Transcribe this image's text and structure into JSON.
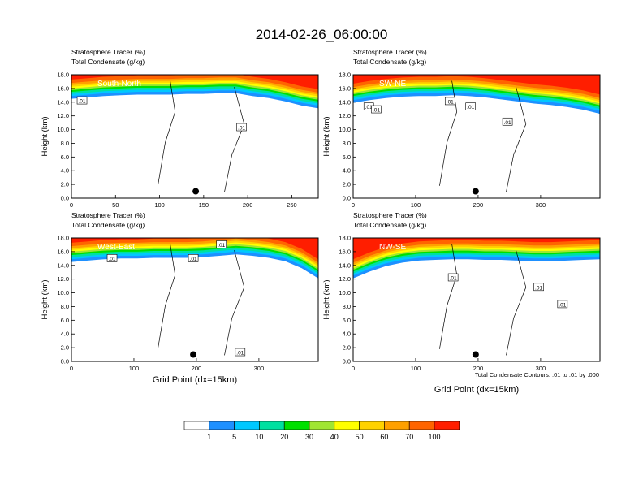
{
  "figure": {
    "title": "2014-02-26_06:00:00",
    "footnote": "Total Condensate Contours: .01 to .01 by .000",
    "xlabel": "Grid Point (dx=15km)"
  },
  "legend": {
    "levels": [
      "1",
      "5",
      "10",
      "20",
      "30",
      "40",
      "50",
      "60",
      "70",
      "100"
    ],
    "colors": [
      "#ffffff",
      "#1e90ff",
      "#00c8ff",
      "#00e0a0",
      "#00e000",
      "#a0e632",
      "#ffff00",
      "#ffd200",
      "#ffa000",
      "#ff6400",
      "#ff1e00"
    ]
  },
  "chart_data": [
    {
      "type": "heatmap",
      "title": "South-North",
      "header_left": "Stratosphere Tracer   (%)",
      "header_left2": "Total Condensate   (g/kg)",
      "ylabel": "Height (km)",
      "xlim": [
        0,
        280
      ],
      "ylim": [
        0,
        18
      ],
      "xticks": [
        0,
        50,
        100,
        150,
        200,
        250
      ],
      "yticks": [
        0.0,
        2.0,
        4.0,
        6.0,
        8.0,
        10.0,
        12.0,
        14.0,
        16.0,
        18.0
      ],
      "marker": {
        "x": 141,
        "y": 1.0
      },
      "tropopause_km": [
        15.4,
        15.6,
        15.8,
        15.9,
        16.0,
        16.0,
        16.0,
        16.1,
        16.1,
        16.2,
        16.2,
        15.8,
        15.5,
        15.0,
        14.4,
        14.0
      ],
      "contour_labels": [
        {
          "x": 12,
          "y": 14.2,
          "text": ".01"
        },
        {
          "x": 193,
          "y": 10.3,
          "text": ".01"
        }
      ]
    },
    {
      "type": "heatmap",
      "title": "SW-NE",
      "header_left": "Stratosphere Tracer   (%)",
      "header_left2": "Total Condensate   (g/kg)",
      "ylabel": "Height (km)",
      "xlim": [
        0,
        395
      ],
      "ylim": [
        0,
        18
      ],
      "xticks": [
        0,
        100,
        200,
        300
      ],
      "yticks": [
        0.0,
        2.0,
        4.0,
        6.0,
        8.0,
        10.0,
        12.0,
        14.0,
        16.0,
        18.0
      ],
      "marker": {
        "x": 196,
        "y": 1.0
      },
      "tropopause_km": [
        14.8,
        15.2,
        15.5,
        15.7,
        15.8,
        15.8,
        15.9,
        15.8,
        15.6,
        15.3,
        15.0,
        14.7,
        14.5,
        14.2,
        13.8,
        13.2
      ],
      "contour_labels": [
        {
          "x": 25,
          "y": 13.3,
          "text": ".01"
        },
        {
          "x": 37,
          "y": 12.9,
          "text": ".01"
        },
        {
          "x": 155,
          "y": 14.1,
          "text": ".01"
        },
        {
          "x": 188,
          "y": 13.3,
          "text": ".01"
        },
        {
          "x": 247,
          "y": 11.1,
          "text": ".01"
        }
      ]
    },
    {
      "type": "heatmap",
      "title": "West-East",
      "header_left": "Stratosphere Tracer   (%)",
      "header_left2": "Total Condensate   (g/kg)",
      "ylabel": "Height (km)",
      "xlim": [
        0,
        395
      ],
      "ylim": [
        0,
        18
      ],
      "xticks": [
        0,
        100,
        200,
        300
      ],
      "yticks": [
        0.0,
        2.0,
        4.0,
        6.0,
        8.0,
        10.0,
        12.0,
        14.0,
        16.0,
        18.0
      ],
      "marker": {
        "x": 195,
        "y": 1.0
      },
      "tropopause_km": [
        15.4,
        15.6,
        15.8,
        15.9,
        15.9,
        16.0,
        16.0,
        16.0,
        16.1,
        16.3,
        16.5,
        16.3,
        16.0,
        15.5,
        14.5,
        13.0
      ],
      "contour_labels": [
        {
          "x": 65,
          "y": 15.0,
          "text": ".01"
        },
        {
          "x": 195,
          "y": 15.0,
          "text": ".01"
        },
        {
          "x": 240,
          "y": 17.0,
          "text": ".01"
        },
        {
          "x": 270,
          "y": 1.3,
          "text": ".01"
        }
      ]
    },
    {
      "type": "heatmap",
      "title": "NW-SE",
      "header_left": "Stratosphere Tracer   (%)",
      "header_left2": "Total Condensate   (g/kg)",
      "ylabel": "Height (km)",
      "xlim": [
        0,
        395
      ],
      "ylim": [
        0,
        18
      ],
      "xticks": [
        0,
        100,
        200,
        300
      ],
      "yticks": [
        0.0,
        2.0,
        4.0,
        6.0,
        8.0,
        10.0,
        12.0,
        14.0,
        16.0,
        18.0
      ],
      "marker": {
        "x": 196,
        "y": 1.0
      },
      "tropopause_km": [
        13.0,
        14.0,
        14.8,
        15.3,
        15.6,
        15.7,
        15.8,
        15.8,
        15.7,
        15.7,
        15.6,
        15.5,
        15.5,
        15.6,
        15.7,
        15.8
      ],
      "contour_labels": [
        {
          "x": 160,
          "y": 12.2,
          "text": ".01"
        },
        {
          "x": 297,
          "y": 10.8,
          "text": ".01"
        },
        {
          "x": 335,
          "y": 8.3,
          "text": ".01"
        }
      ]
    }
  ]
}
